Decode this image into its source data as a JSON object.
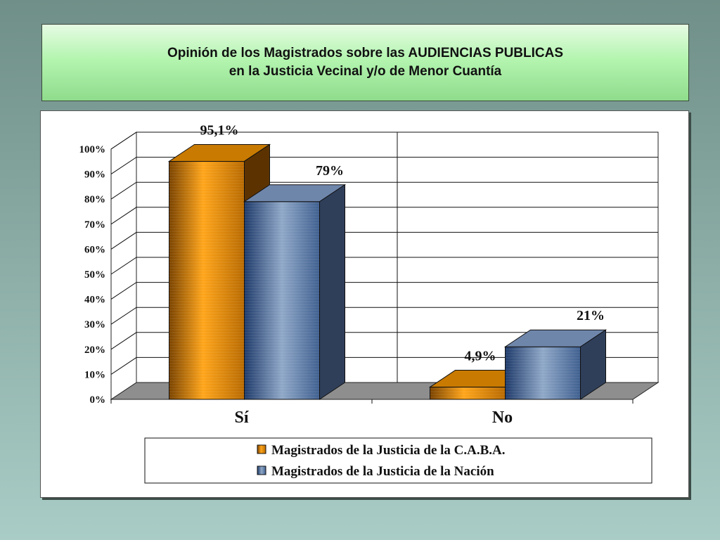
{
  "title": {
    "line1": "Opinión de los Magistrados sobre las AUDIENCIAS PUBLICAS",
    "line2": "en la Justicia Vecinal y/o de Menor Cuantía"
  },
  "chart_data": {
    "type": "bar",
    "categories": [
      "Sí",
      "No"
    ],
    "series": [
      {
        "name": "Magistrados de la Justicia de la C.A.B.A.",
        "values": [
          95.1,
          4.9
        ],
        "labels": [
          "95,1%",
          "4,9%"
        ],
        "color": "#f29a00"
      },
      {
        "name": "Magistrados de la Justicia de la Nación",
        "values": [
          79,
          21
        ],
        "labels": [
          "79%",
          "21%"
        ],
        "color": "#6d8cb8"
      }
    ],
    "yticks": [
      "0%",
      "10%",
      "20%",
      "30%",
      "40%",
      "50%",
      "60%",
      "70%",
      "80%",
      "90%",
      "100%"
    ],
    "ylim": [
      0,
      100
    ],
    "grid": true,
    "legend": "bottom",
    "style": "3d-clustered"
  }
}
